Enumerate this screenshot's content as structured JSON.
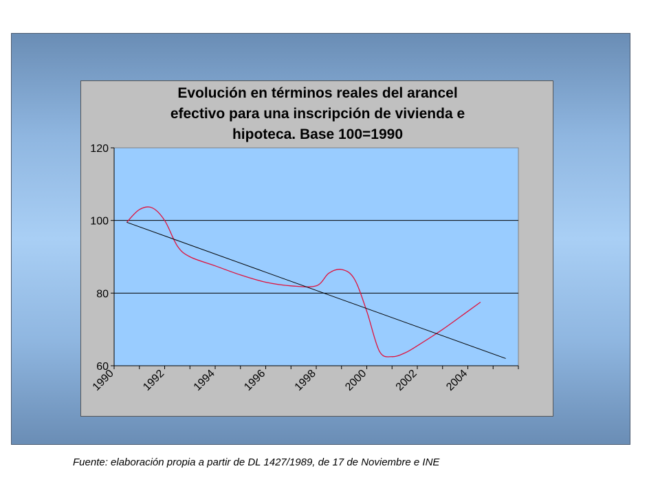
{
  "colors": {
    "plot_background": "#99ccff",
    "chart_background": "#c0c0c0",
    "series_line": "#e0103a",
    "trend_line": "#000000",
    "gridline": "#000000"
  },
  "chart_data": {
    "type": "line",
    "title_lines": [
      "Evolución en términos reales del arancel",
      "efectivo para una inscripción de vivienda e",
      "hipoteca. Base 100=1990"
    ],
    "xlabel": "",
    "ylabel": "",
    "ylim": [
      60,
      120
    ],
    "yticks": [
      60,
      80,
      100,
      120
    ],
    "xlim": [
      1990,
      2006
    ],
    "xticks": [
      1990,
      1992,
      1994,
      1996,
      1998,
      2000,
      2002,
      2004
    ],
    "grid": "horizontal",
    "legend": "none",
    "series": [
      {
        "x": [
          1990.5,
          1991,
          1991.5,
          1992,
          1992.5,
          1993,
          1994,
          1995,
          1996,
          1997,
          1998,
          1998.5,
          1999,
          1999.5,
          2000,
          2000.5,
          2001,
          2001.5,
          2002,
          2003,
          2004,
          2004.5
        ],
        "y": [
          99.5,
          103,
          103.5,
          100,
          93,
          90,
          87.5,
          85,
          83,
          82,
          82,
          85.5,
          86.5,
          84,
          75,
          64,
          62.5,
          63.5,
          65.5,
          70,
          75,
          77.5
        ]
      }
    ],
    "trendline": {
      "x": [
        1990.5,
        2005.5
      ],
      "y": [
        99.5,
        62
      ]
    }
  },
  "footer": {
    "source": "Fuente: elaboración propia a partir de DL 1427/1989, de 17 de Noviembre e INE"
  }
}
